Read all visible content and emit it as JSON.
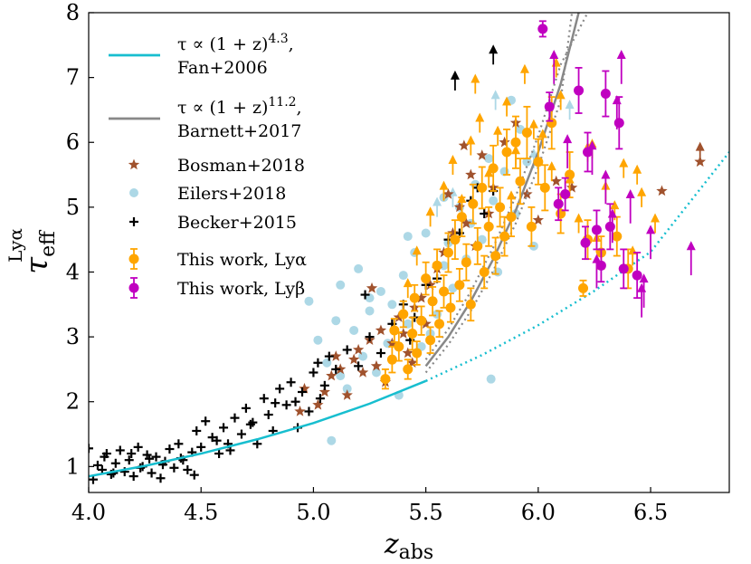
{
  "chart_data": {
    "type": "scatter",
    "xlabel": {
      "main": "z",
      "sub": "abs"
    },
    "ylabel": {
      "main": "τ",
      "sub": "eff",
      "sup": "Lyα"
    },
    "xlim": [
      4.0,
      6.85
    ],
    "ylim": [
      0.6,
      8.0
    ],
    "xticks": [
      4.0,
      4.5,
      5.0,
      5.5,
      6.0,
      6.5
    ],
    "xtick_labels": [
      "4.0",
      "4.5",
      "5.0",
      "5.5",
      "6.0",
      "6.5"
    ],
    "yticks": [
      1,
      2,
      3,
      4,
      5,
      6,
      7,
      8
    ],
    "ytick_labels": [
      "1",
      "2",
      "3",
      "4",
      "5",
      "6",
      "7",
      "8"
    ],
    "legend": [
      {
        "key": "fan",
        "marker": "line",
        "color": "#17becf",
        "lines": [
          "τ ∝ (1 + z)^4.3,",
          "Fan+2006"
        ]
      },
      {
        "key": "barnett",
        "marker": "line",
        "color": "#888888",
        "lines": [
          "τ ∝ (1 + z)^11.2,",
          "Barnett+2017"
        ]
      },
      {
        "key": "bosman",
        "marker": "star",
        "color": "#a0522d",
        "lines": [
          "Bosman+2018"
        ]
      },
      {
        "key": "eilers",
        "marker": "circle",
        "color": "#add8e6",
        "lines": [
          "Eilers+2018"
        ]
      },
      {
        "key": "becker",
        "marker": "plus",
        "color": "#000000",
        "lines": [
          "Becker+2015"
        ]
      },
      {
        "key": "lya",
        "marker": "errcircle",
        "color": "#ffa500",
        "lines": [
          "This work, Lyα"
        ]
      },
      {
        "key": "lyb",
        "marker": "errcircle",
        "color": "#c000c0",
        "lines": [
          "This work, Lyβ"
        ]
      }
    ],
    "series": [
      {
        "name": "Fan+2006 fit",
        "kind": "curve",
        "color": "#17becf",
        "x": [
          4.0,
          4.25,
          4.5,
          4.75,
          5.0,
          5.25,
          5.5
        ],
        "y": [
          0.85,
          1.01,
          1.2,
          1.42,
          1.67,
          1.97,
          2.32
        ],
        "dotted_x": [
          5.5,
          5.75,
          6.0,
          6.25,
          6.5,
          6.85
        ],
        "dotted_y": [
          2.32,
          2.72,
          3.18,
          3.71,
          4.31,
          5.85
        ]
      },
      {
        "name": "Barnett+2017 fit",
        "kind": "curve",
        "color": "#888888",
        "x": [
          5.5,
          5.6,
          5.7,
          5.8,
          5.9,
          6.0,
          6.1,
          6.18
        ],
        "y": [
          2.55,
          3.0,
          3.55,
          4.2,
          4.95,
          5.85,
          6.9,
          8.0
        ],
        "upper_x": [
          5.5,
          5.6,
          5.7,
          5.8,
          5.9,
          6.0,
          6.1,
          6.22
        ],
        "upper_y": [
          2.65,
          3.12,
          3.7,
          4.38,
          5.17,
          6.1,
          7.2,
          8.0
        ],
        "lower_x": [
          5.5,
          5.6,
          5.7,
          5.8,
          5.9,
          6.0,
          6.1,
          6.15
        ],
        "lower_y": [
          2.45,
          2.88,
          3.4,
          4.02,
          4.75,
          5.62,
          6.65,
          8.0
        ]
      },
      {
        "name": "Bosman+2018",
        "kind": "star",
        "color": "#a0522d",
        "x": [
          4.94,
          5.02,
          5.05,
          5.08,
          5.12,
          5.15,
          5.18,
          5.2,
          5.22,
          5.25,
          5.28,
          5.3,
          5.32,
          5.35,
          5.38,
          5.4,
          5.42,
          5.45,
          5.48,
          5.5,
          5.52,
          5.55,
          5.58,
          5.6,
          5.62,
          5.65,
          5.68,
          5.7,
          5.72,
          5.75,
          5.78,
          5.8,
          5.85,
          5.9,
          5.95,
          6.0,
          6.08,
          6.15,
          6.55,
          6.72,
          4.96,
          5.1,
          5.26,
          5.44,
          5.67
        ],
        "y": [
          1.85,
          1.95,
          2.15,
          2.4,
          2.5,
          2.1,
          2.65,
          2.8,
          2.45,
          2.95,
          2.55,
          3.1,
          2.3,
          2.9,
          3.3,
          3.05,
          2.75,
          3.45,
          3.6,
          3.2,
          3.8,
          4.05,
          4.3,
          5.2,
          4.6,
          5.0,
          4.75,
          5.5,
          4.4,
          5.8,
          4.9,
          5.3,
          6.0,
          6.3,
          5.2,
          4.8,
          5.4,
          5.3,
          5.25,
          5.7,
          2.2,
          2.7,
          3.75,
          2.6,
          5.95
        ],
        "limits_x": [
          6.72
        ],
        "limits_y": [
          5.7
        ]
      },
      {
        "name": "Eilers+2018",
        "kind": "circle",
        "color": "#add8e6",
        "x": [
          4.98,
          5.02,
          5.06,
          5.08,
          5.1,
          5.12,
          5.15,
          5.18,
          5.2,
          5.22,
          5.25,
          5.28,
          5.3,
          5.33,
          5.35,
          5.38,
          5.4,
          5.42,
          5.45,
          5.48,
          5.5,
          5.52,
          5.55,
          5.58,
          5.6,
          5.62,
          5.65,
          5.68,
          5.7,
          5.72,
          5.75,
          5.78,
          5.8,
          5.82,
          5.85,
          5.88,
          5.9,
          5.92,
          5.95,
          5.98,
          5.12,
          5.25,
          5.42,
          5.58,
          5.79
        ],
        "y": [
          3.55,
          2.95,
          2.6,
          1.4,
          3.25,
          3.8,
          2.2,
          3.1,
          4.05,
          2.7,
          3.4,
          2.45,
          3.7,
          2.9,
          3.5,
          2.1,
          3.95,
          3.2,
          4.3,
          2.85,
          4.6,
          3.05,
          3.35,
          4.1,
          4.45,
          3.75,
          5.0,
          4.2,
          4.75,
          5.35,
          4.5,
          5.75,
          5.1,
          4.0,
          5.55,
          6.65,
          4.9,
          6.2,
          5.7,
          4.4,
          2.4,
          3.6,
          4.55,
          5.15,
          2.35
        ],
        "limits_x": [
          5.55,
          5.62,
          5.81,
          5.98,
          6.14
        ],
        "limits_y": [
          4.85,
          5.0,
          6.5,
          5.6,
          6.35
        ]
      },
      {
        "name": "Becker+2015",
        "kind": "plus",
        "color": "#000000",
        "x": [
          4.0,
          4.02,
          4.04,
          4.06,
          4.08,
          4.1,
          4.12,
          4.14,
          4.16,
          4.18,
          4.2,
          4.22,
          4.24,
          4.26,
          4.28,
          4.3,
          4.32,
          4.34,
          4.36,
          4.38,
          4.4,
          4.42,
          4.44,
          4.46,
          4.48,
          4.5,
          4.52,
          4.55,
          4.58,
          4.6,
          4.62,
          4.65,
          4.68,
          4.7,
          4.72,
          4.75,
          4.78,
          4.8,
          4.82,
          4.85,
          4.88,
          4.9,
          4.92,
          4.95,
          4.98,
          5.0,
          5.02,
          5.05,
          5.1,
          5.15,
          5.2,
          5.25,
          5.3,
          5.35,
          5.4,
          5.45,
          5.5,
          5.55,
          5.6,
          5.65,
          5.7,
          5.73,
          5.76,
          5.8,
          4.07,
          4.11,
          4.19,
          4.23,
          4.27,
          4.33,
          4.41,
          4.47,
          4.57,
          4.63,
          4.73,
          4.83,
          4.93,
          5.03,
          5.07,
          5.23,
          5.43
        ],
        "y": [
          1.28,
          0.8,
          1.02,
          0.95,
          1.2,
          0.88,
          1.05,
          1.25,
          0.92,
          1.1,
          0.85,
          1.3,
          1.0,
          1.18,
          0.9,
          1.15,
          0.82,
          1.08,
          1.27,
          0.98,
          1.35,
          1.1,
          0.95,
          1.22,
          1.55,
          1.3,
          1.7,
          1.45,
          1.2,
          1.6,
          1.35,
          1.75,
          1.5,
          1.9,
          1.65,
          1.35,
          2.05,
          1.8,
          1.55,
          2.2,
          1.95,
          2.3,
          2.0,
          2.15,
          1.85,
          2.45,
          2.6,
          2.25,
          2.5,
          2.8,
          2.55,
          3.0,
          2.75,
          3.2,
          3.5,
          3.3,
          3.8,
          3.9,
          4.5,
          4.6,
          5.1,
          5.3,
          4.9,
          5.25,
          1.15,
          0.9,
          1.2,
          0.98,
          1.12,
          1.03,
          1.13,
          0.87,
          1.4,
          1.25,
          1.68,
          1.98,
          1.6,
          2.05,
          2.7,
          3.65,
          2.95
        ],
        "limits_x": [
          5.63,
          5.8
        ],
        "limits_y": [
          6.8,
          7.2
        ]
      },
      {
        "name": "This work, Lyα",
        "kind": "errcircle",
        "color": "#ffa500",
        "x": [
          5.32,
          5.35,
          5.36,
          5.38,
          5.4,
          5.42,
          5.44,
          5.45,
          5.46,
          5.48,
          5.5,
          5.52,
          5.53,
          5.55,
          5.56,
          5.58,
          5.6,
          5.61,
          5.63,
          5.65,
          5.66,
          5.68,
          5.7,
          5.71,
          5.73,
          5.75,
          5.76,
          5.78,
          5.8,
          5.81,
          5.83,
          5.85,
          5.86,
          5.88,
          5.9,
          5.92,
          5.95,
          5.97,
          6.0,
          6.03,
          6.06,
          6.1,
          6.14,
          6.2,
          6.22,
          6.28,
          6.35,
          6.4
        ],
        "y": [
          2.35,
          2.65,
          3.1,
          2.85,
          3.35,
          2.5,
          3.05,
          3.6,
          2.75,
          3.25,
          3.9,
          2.95,
          3.55,
          4.1,
          3.2,
          3.7,
          4.3,
          3.45,
          4.5,
          3.8,
          4.85,
          4.15,
          3.5,
          5.05,
          4.4,
          5.3,
          4.0,
          4.7,
          5.6,
          4.25,
          5.0,
          4.55,
          5.85,
          4.85,
          6.0,
          5.4,
          6.15,
          4.7,
          5.7,
          5.3,
          6.3,
          4.9,
          5.5,
          3.75,
          4.5,
          4.3,
          4.55,
          4.05
        ],
        "err": [
          0.15,
          0.2,
          0.18,
          0.22,
          0.2,
          0.15,
          0.25,
          0.2,
          0.18,
          0.22,
          0.25,
          0.2,
          0.22,
          0.25,
          0.2,
          0.25,
          0.3,
          0.22,
          0.3,
          0.25,
          0.3,
          0.28,
          0.25,
          0.3,
          0.28,
          0.32,
          0.25,
          0.3,
          0.35,
          0.28,
          0.3,
          0.3,
          0.35,
          0.3,
          0.4,
          0.35,
          0.4,
          0.3,
          0.35,
          0.35,
          0.4,
          0.3,
          0.35,
          0.12,
          0.3,
          0.25,
          0.3,
          0.3
        ],
        "limits_x": [
          5.42,
          5.46,
          5.52,
          5.58,
          5.62,
          5.66,
          5.7,
          5.74,
          5.78,
          5.82,
          5.86,
          5.9,
          5.94,
          5.98,
          6.02,
          6.06,
          6.1,
          6.14,
          6.18,
          6.22,
          6.26,
          6.3,
          6.34,
          6.38,
          6.42,
          6.46,
          6.52,
          5.88,
          5.72,
          6.08,
          6.24,
          6.44
        ],
        "limits_y": [
          3.6,
          4.1,
          4.7,
          5.1,
          5.5,
          4.9,
          5.8,
          6.15,
          5.3,
          5.95,
          6.4,
          5.65,
          6.9,
          6.05,
          5.9,
          5.4,
          6.5,
          5.2,
          4.6,
          5.7,
          4.3,
          5.1,
          4.8,
          5.45,
          4.1,
          5.0,
          4.6,
          4.95,
          6.75,
          7.0,
          5.75,
          5.35
        ],
        "limit_len": 0.28
      },
      {
        "name": "This work, Lyβ",
        "kind": "errcircle",
        "color": "#c000c0",
        "x": [
          6.02,
          6.05,
          6.09,
          6.12,
          6.18,
          6.22,
          6.26,
          6.3,
          6.32,
          6.36,
          6.38,
          6.44,
          6.28,
          6.21
        ],
        "y": [
          7.75,
          6.55,
          5.05,
          5.2,
          6.8,
          5.85,
          4.65,
          6.75,
          4.7,
          6.3,
          4.05,
          3.95,
          4.1,
          4.45
        ],
        "err": [
          0.12,
          0.22,
          0.25,
          0.25,
          0.35,
          0.3,
          0.3,
          0.35,
          0.35,
          0.4,
          0.3,
          0.35,
          0.25,
          0.25
        ],
        "limits_x": [
          6.07,
          6.13,
          6.24,
          6.3,
          6.35,
          6.37,
          6.41,
          6.46,
          6.47,
          6.5,
          6.68,
          6.26,
          6.33
        ],
        "limits_y": [
          6.9,
          5.6,
          5.5,
          5.05,
          6.2,
          6.9,
          4.75,
          3.3,
          3.45,
          4.2,
          3.95,
          3.75,
          4.45
        ],
        "limit_len": 0.5
      }
    ]
  }
}
